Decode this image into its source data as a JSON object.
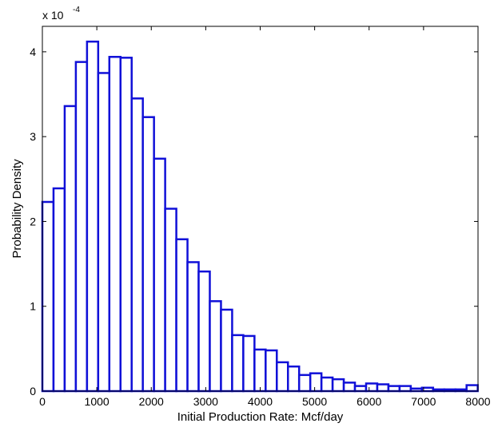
{
  "chart_data": {
    "type": "bar",
    "subtype": "histogram",
    "xlabel": "Initial Production Rate: Mcf/day",
    "ylabel": "Probability Density",
    "y_multiplier": {
      "base": "x 10",
      "exponent": "-4"
    },
    "xlim": [
      0,
      8000
    ],
    "ylim": [
      0,
      4.3
    ],
    "grid": false,
    "legend": "none",
    "bar_color": "#1010d8",
    "bin_width": 205,
    "x_ticks": [
      0,
      1000,
      2000,
      3000,
      4000,
      5000,
      6000,
      7000,
      8000
    ],
    "x_tick_labels": [
      "0",
      "1000",
      "2000",
      "3000",
      "4000",
      "5000",
      "6000",
      "7000",
      "8000"
    ],
    "y_ticks": [
      0,
      1,
      2,
      3,
      4
    ],
    "y_tick_labels": [
      "0",
      "1",
      "2",
      "3",
      "4"
    ],
    "bin_starts": [
      0,
      205,
      410,
      615,
      820,
      1025,
      1230,
      1435,
      1640,
      1845,
      2050,
      2255,
      2460,
      2665,
      2870,
      3075,
      3280,
      3485,
      3690,
      3895,
      4100,
      4305,
      4510,
      4715,
      4920,
      5125,
      5330,
      5535,
      5740,
      5945,
      6150,
      6355,
      6560,
      6765,
      6970,
      7175,
      7380,
      7585,
      7790
    ],
    "values": [
      2.23,
      2.39,
      3.36,
      3.88,
      4.12,
      3.75,
      3.94,
      3.93,
      3.45,
      3.23,
      2.74,
      2.15,
      1.79,
      1.52,
      1.41,
      1.06,
      0.96,
      0.66,
      0.65,
      0.49,
      0.48,
      0.34,
      0.29,
      0.19,
      0.21,
      0.16,
      0.14,
      0.1,
      0.06,
      0.09,
      0.08,
      0.06,
      0.06,
      0.03,
      0.04,
      0.02,
      0.02,
      0.02,
      0.07
    ]
  }
}
